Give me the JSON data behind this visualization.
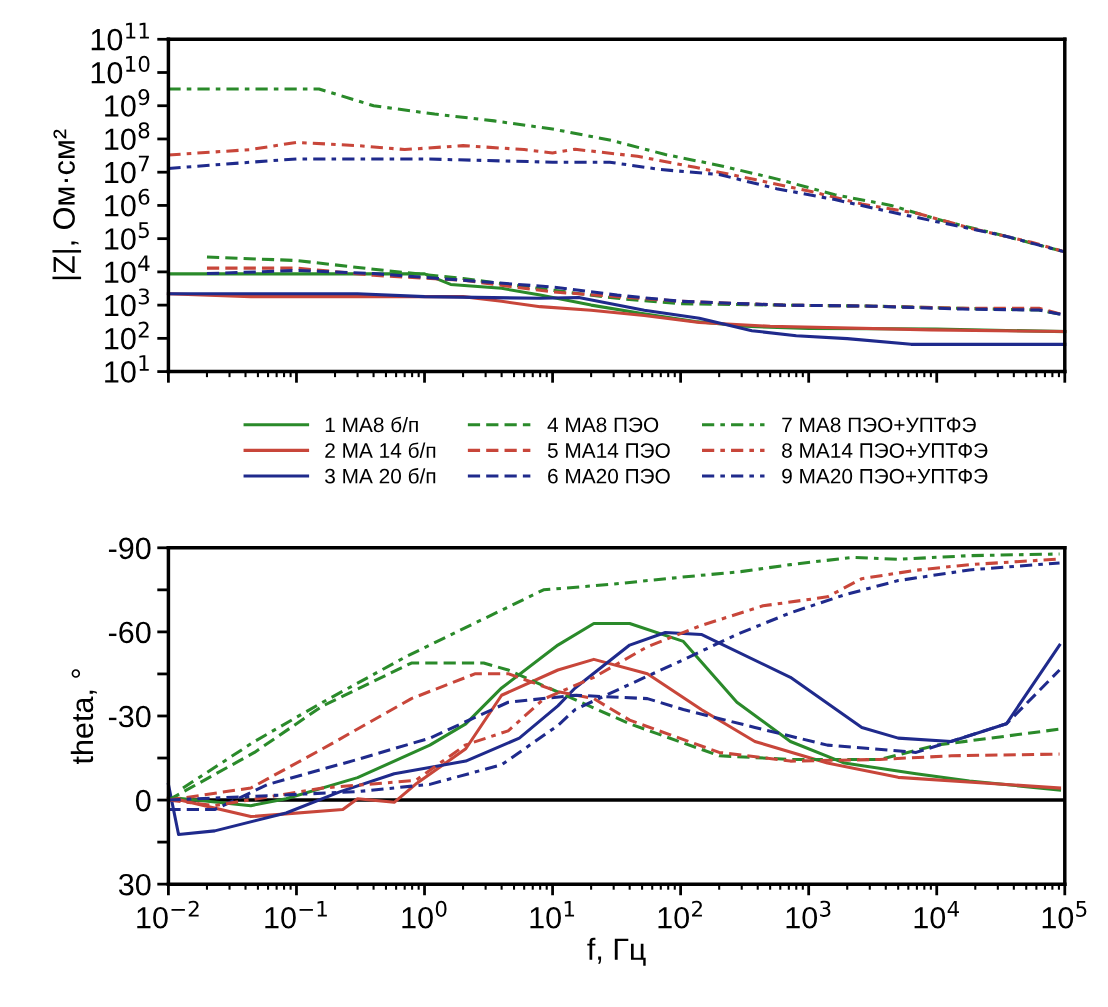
{
  "chart_data": [
    {
      "type": "line",
      "ylabel": "|Z|, Ом·см²",
      "log": "xy",
      "xlim": [
        0.01,
        100000
      ],
      "ylim": [
        10,
        100000000000
      ],
      "xticks": [
        {
          "value": 0.01,
          "label": null
        },
        {
          "value": 0.1,
          "label": null
        },
        {
          "value": 1,
          "label": null
        },
        {
          "value": 10,
          "label": null
        },
        {
          "value": 100,
          "label": null
        },
        {
          "value": 1000,
          "label": null
        },
        {
          "value": 10000,
          "label": null
        },
        {
          "value": 100000,
          "label": null
        }
      ],
      "yticks": [
        {
          "value": 10,
          "label": "10$^{1}$"
        },
        {
          "value": 100,
          "label": "10$^{2}$"
        },
        {
          "value": 1000,
          "label": "10$^{3}$"
        },
        {
          "value": 10000,
          "label": "10$^{4}$"
        },
        {
          "value": 100000,
          "label": "10$^{5}$"
        },
        {
          "value": 1000000,
          "label": "10$^{6}$"
        },
        {
          "value": 10000000,
          "label": "10$^{7}$"
        },
        {
          "value": 100000000,
          "label": "10$^{8}$"
        },
        {
          "value": 1000000000,
          "label": "10$^{9}$"
        },
        {
          "value": 10000000000,
          "label": "10$^{10}$"
        },
        {
          "value": 100000000000,
          "label": "10$^{11}$"
        }
      ],
      "tick_labels": "y",
      "legend": "bottom",
      "grid": false,
      "series": [
        {
          "name": "1 МА8 б/п",
          "color": "#2a8a2a",
          "line_style": "solid",
          "x": [
            0.01,
            1,
            1.6,
            4,
            8,
            20,
            50,
            130,
            320,
            1000,
            10000,
            100000
          ],
          "values": [
            8700,
            8700,
            4200,
            3200,
            2000,
            1000,
            560,
            320,
            230,
            200,
            190,
            160
          ]
        },
        {
          "name": "2 МА 14 б/п",
          "color": "#c8463a",
          "line_style": "solid",
          "x": [
            0.01,
            0.044,
            2,
            4,
            8,
            20,
            52,
            140,
            500,
            9000,
            100000
          ],
          "values": [
            2200,
            1800,
            1800,
            1300,
            900,
            700,
            490,
            300,
            230,
            180,
            160
          ]
        },
        {
          "name": "3 МА 20 б/п",
          "color": "#1f2a8c",
          "line_style": "solid",
          "x": [
            0.01,
            0.3,
            1,
            8,
            16,
            52,
            140,
            360,
            800,
            2000,
            6300,
            100000
          ],
          "values": [
            2200,
            2200,
            1800,
            1600,
            1700,
            700,
            400,
            170,
            120,
            98,
            66,
            66
          ]
        },
        {
          "name": "4 МА8 ПЭО",
          "color": "#2a8a2a",
          "line_style": "dashed",
          "x": [
            0.02,
            0.1,
            0.4,
            2,
            10,
            32,
            100,
            630,
            3200,
            16000,
            63000,
            100000
          ],
          "values": [
            28000,
            22000,
            12000,
            6300,
            2800,
            1600,
            1100,
            1000,
            930,
            800,
            710,
            500
          ]
        },
        {
          "name": "5 МА14 ПЭО",
          "color": "#c8463a",
          "line_style": "dashed",
          "x": [
            0.02,
            0.1,
            0.4,
            2,
            10,
            32,
            100,
            630,
            3200,
            16000,
            63000,
            100000
          ],
          "values": [
            13000,
            13000,
            7900,
            5600,
            2500,
            1800,
            1300,
            1000,
            930,
            800,
            800,
            500
          ]
        },
        {
          "name": "6 МА20 ПЭО",
          "color": "#1f2a8c",
          "line_style": "dashed",
          "x": [
            0.02,
            0.1,
            0.4,
            2,
            10,
            32,
            100,
            630,
            3200,
            16000,
            63000,
            100000
          ],
          "values": [
            8900,
            11000,
            8900,
            5600,
            3500,
            2000,
            1300,
            1000,
            930,
            760,
            710,
            500
          ]
        },
        {
          "name": "7 МА8 ПЭО+УПТФЭ",
          "color": "#2a8a2a",
          "line_style": "dashdot",
          "x": [
            0.01,
            0.15,
            0.4,
            1.2,
            3.5,
            10,
            29,
            76,
            200,
            560,
            1600,
            4400,
            11000,
            34000,
            100000
          ],
          "values": [
            3200000000,
            3200000000,
            1000000000,
            560000000,
            350000000,
            200000000,
            90000000,
            34000000,
            16000000,
            6300000,
            2100000,
            1000000,
            350000,
            120000,
            40000
          ]
        },
        {
          "name": "8 МА14 ПЭО+УПТФЭ",
          "color": "#c8463a",
          "line_style": "dashdot",
          "x": [
            0.01,
            0.044,
            0.1,
            0.3,
            0.7,
            2,
            6,
            10,
            15,
            46,
            130,
            380,
            1100,
            2600,
            7000,
            19000,
            55000,
            100000
          ],
          "values": [
            33000000,
            48000000,
            79000000,
            63000000,
            48000000,
            63000000,
            48000000,
            38000000,
            49000000,
            30000000,
            14000000,
            6000000,
            2500000,
            1100000,
            580000,
            200000,
            78000,
            40000
          ]
        },
        {
          "name": "9 МА20 ПЭО+УПТФЭ",
          "color": "#1f2a8c",
          "line_style": "dashdot",
          "x": [
            0.01,
            0.044,
            0.1,
            1,
            10,
            28,
            70,
            200,
            560,
            1600,
            4400,
            11000,
            34000,
            100000
          ],
          "values": [
            13000000,
            20000000,
            25000000,
            25000000,
            20000000,
            20000000,
            12000000,
            8500000,
            3200000,
            1500000,
            630000,
            300000,
            120000,
            40000
          ]
        }
      ]
    },
    {
      "type": "line",
      "xlabel": "f, Гц",
      "ylabel": "theta, °",
      "log": "x",
      "xlim": [
        0.01,
        100000
      ],
      "ylim": [
        30,
        -90
      ],
      "xticks": [
        {
          "value": 0.01,
          "label": "10$^{−2}$"
        },
        {
          "value": 0.1,
          "label": "10$^{−1}$"
        },
        {
          "value": 1,
          "label": "10$^{0}$"
        },
        {
          "value": 10,
          "label": "10$^{1}$"
        },
        {
          "value": 100,
          "label": "10$^{2}$"
        },
        {
          "value": 1000,
          "label": "10$^{3}$"
        },
        {
          "value": 10000,
          "label": "10$^{4}$"
        },
        {
          "value": 100000,
          "label": "10$^{5}$"
        }
      ],
      "yticks": [
        30,
        {
          "value": 15,
          "label": null
        },
        0,
        {
          "value": -15,
          "label": null
        },
        -30,
        {
          "value": -45,
          "label": null
        },
        -60,
        {
          "value": -75,
          "label": null
        },
        -90
      ],
      "grid": false,
      "legend": false,
      "ref_lines": [
        {
          "axis": "y",
          "value": 0,
          "color": "#000000",
          "line_style": "solid"
        }
      ],
      "series": [
        {
          "color": "#2a8a2a",
          "line_style": "solid",
          "x": [
            0.01,
            0.044,
            0.083,
            0.3,
            1.1,
            2.1,
            4,
            11,
            21,
            40,
            105,
            275,
            720,
            1900,
            6900,
            18000,
            91000
          ],
          "values": [
            -1,
            2,
            -0.5,
            -8,
            -19.6,
            -27.2,
            -40,
            -55.3,
            -63,
            -63,
            -56.6,
            -34.9,
            -20.9,
            -13.2,
            -9.4,
            -6.8,
            -3.6
          ]
        },
        {
          "color": "#c8463a",
          "line_style": "solid",
          "x": [
            0.01,
            0.044,
            0.23,
            0.3,
            0.58,
            0.85,
            2.1,
            4,
            11,
            21,
            55,
            145,
            380,
            1400,
            5000,
            91000
          ],
          "values": [
            -1,
            5.9,
            3.4,
            -0.5,
            0.8,
            -5.6,
            -18.3,
            -37.4,
            -46.4,
            -50.2,
            -45.1,
            -32.3,
            -20.9,
            -13.2,
            -8.1,
            -4.3
          ]
        },
        {
          "color": "#1f2a8c",
          "line_style": "solid",
          "x": [
            0.01,
            0.012,
            0.023,
            0.083,
            0.22,
            0.58,
            2.1,
            5.5,
            11,
            15,
            40,
            76,
            145,
            720,
            2600,
            5000,
            13000,
            35000,
            91000
          ],
          "values": [
            -5.6,
            12.3,
            11,
            4.6,
            -3,
            -9.4,
            -13.9,
            -22.1,
            -33.6,
            -40,
            -55.3,
            -59.8,
            -59.1,
            -43.8,
            -25.9,
            -22.1,
            -20.9,
            -27.2,
            -55.3
          ]
        },
        {
          "color": "#2a8a2a",
          "line_style": "dashed",
          "x": [
            0.01,
            0.047,
            0.16,
            0.79,
            2.9,
            4.5,
            40,
            200,
            720,
            3600,
            10000,
            91000
          ],
          "values": [
            0,
            -17,
            -33.6,
            -48.9,
            -48.9,
            -46.4,
            -27.2,
            -15.8,
            -14.5,
            -14.5,
            -19.6,
            -25.3
          ]
        },
        {
          "color": "#c8463a",
          "line_style": "dashed",
          "x": [
            0.01,
            0.044,
            0.16,
            0.79,
            2.5,
            4.5,
            11,
            21,
            40,
            200,
            720,
            3600,
            13000,
            91000
          ],
          "values": [
            0,
            -4.3,
            -18.3,
            -36.2,
            -45.1,
            -45.1,
            -38.7,
            -36.2,
            -28.5,
            -17,
            -13.9,
            -14.5,
            -15.8,
            -16.4
          ]
        },
        {
          "color": "#1f2a8c",
          "line_style": "dashed",
          "x": [
            0.01,
            0.023,
            0.06,
            0.3,
            1.1,
            4.5,
            15,
            55,
            105,
            380,
            1400,
            6900,
            35000,
            91000
          ],
          "values": [
            3.4,
            3.4,
            -5.6,
            -14.5,
            -22.1,
            -34.9,
            -37.4,
            -36.2,
            -32.3,
            -25.9,
            -19.6,
            -17,
            -27.2,
            -46.4
          ]
        },
        {
          "color": "#2a8a2a",
          "line_style": "dashdot",
          "x": [
            0.013,
            0.047,
            0.16,
            0.74,
            8.5,
            29,
            100,
            295,
            720,
            2200,
            5000,
            18000,
            91000
          ],
          "values": [
            -4.3,
            -20.9,
            -34.9,
            -51.5,
            -75,
            -77,
            -79.5,
            -81.5,
            -84,
            -86.6,
            -85.9,
            -87.2,
            -87.8
          ]
        },
        {
          "color": "#c8463a",
          "line_style": "dashdot",
          "x": [
            0.01,
            0.023,
            0.16,
            0.85,
            2.1,
            4.5,
            8.5,
            21,
            55,
            145,
            440,
            1400,
            2600,
            6900,
            18000,
            91000
          ],
          "values": [
            0,
            2,
            -4.3,
            -7,
            -19.7,
            -24.7,
            -36,
            -43.8,
            -54.7,
            -62.3,
            -69.3,
            -72.5,
            -79,
            -82,
            -84,
            -86
          ]
        },
        {
          "color": "#1f2a8c",
          "line_style": "dashdot",
          "x": [
            0.01,
            0.3,
            1.1,
            4,
            11,
            15,
            40,
            100,
            275,
            720,
            1900,
            5000,
            18000,
            91000
          ],
          "values": [
            0,
            -3,
            -5.6,
            -12.6,
            -26.6,
            -32.3,
            -41.3,
            -49.6,
            -59.1,
            -66.8,
            -73.2,
            -78.3,
            -82.1,
            -84.6
          ]
        }
      ]
    }
  ]
}
